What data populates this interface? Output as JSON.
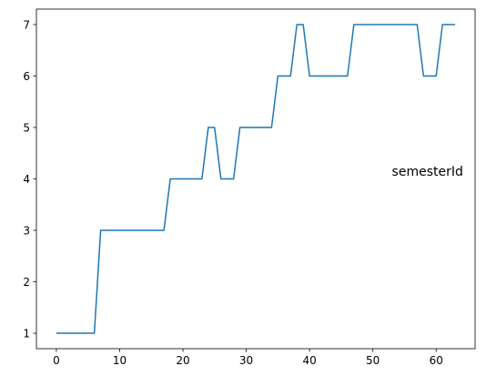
{
  "chart_data": {
    "type": "line",
    "title": "",
    "xlabel": "",
    "ylabel": "",
    "grid": false,
    "xlim": [
      -3.15,
      66.15
    ],
    "ylim": [
      0.7,
      7.3
    ],
    "xticks": [
      0,
      10,
      20,
      30,
      40,
      50,
      60
    ],
    "yticks": [
      1,
      2,
      3,
      4,
      5,
      6,
      7
    ],
    "annotations": [
      {
        "text": "semesterId",
        "x": 53,
        "y": 4.15
      }
    ],
    "series": [
      {
        "color": "#1f77b4",
        "x": [
          0,
          1,
          2,
          3,
          4,
          5,
          6,
          7,
          8,
          9,
          10,
          11,
          12,
          13,
          14,
          15,
          16,
          17,
          18,
          19,
          20,
          21,
          22,
          23,
          24,
          25,
          26,
          27,
          28,
          29,
          30,
          31,
          32,
          33,
          34,
          35,
          36,
          37,
          38,
          39,
          40,
          41,
          42,
          43,
          44,
          45,
          46,
          47,
          48,
          49,
          50,
          51,
          52,
          53,
          54,
          55,
          56,
          57,
          58,
          59,
          60,
          61,
          62,
          63
        ],
        "values": [
          1,
          1,
          1,
          1,
          1,
          1,
          1,
          3,
          3,
          3,
          3,
          3,
          3,
          3,
          3,
          3,
          3,
          3,
          4,
          4,
          4,
          4,
          4,
          4,
          5,
          5,
          4,
          4,
          4,
          5,
          5,
          5,
          5,
          5,
          5,
          6,
          6,
          6,
          7,
          7,
          6,
          6,
          6,
          6,
          6,
          6,
          6,
          7,
          7,
          7,
          7,
          7,
          7,
          7,
          7,
          7,
          7,
          7,
          6,
          6,
          6,
          7,
          7,
          7
        ]
      }
    ]
  }
}
